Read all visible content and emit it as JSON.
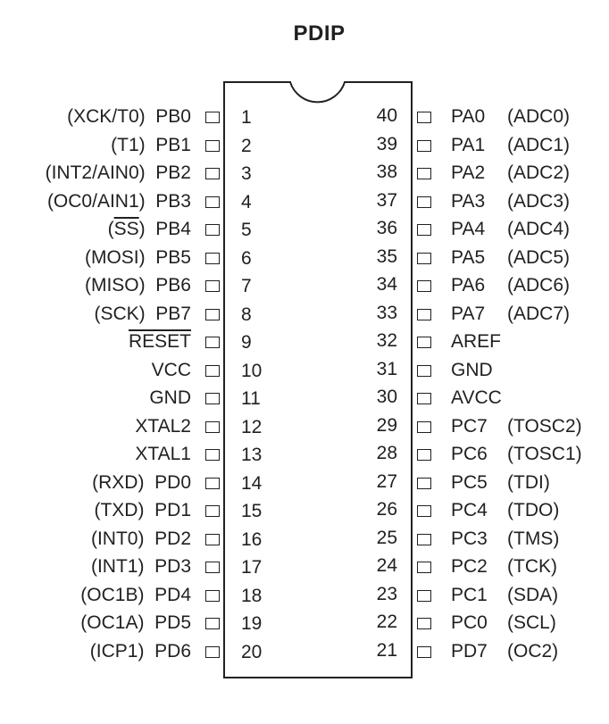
{
  "package": "PDIP",
  "left_pins": [
    {
      "num": "1",
      "pre": "(XCK/T0)  ",
      "name": "PB0",
      "overline": ""
    },
    {
      "num": "2",
      "pre": "(T1)  ",
      "name": "PB1",
      "overline": ""
    },
    {
      "num": "3",
      "pre": "(INT2/AIN0)  ",
      "name": "PB2",
      "overline": ""
    },
    {
      "num": "4",
      "pre": "(OC0/AIN1)  ",
      "name": "PB3",
      "overline": ""
    },
    {
      "num": "5",
      "pre": "(",
      "ovtext": "SS",
      "post": ")  ",
      "name": "PB4",
      "overline": "alt"
    },
    {
      "num": "6",
      "pre": "(MOSI)  ",
      "name": "PB5",
      "overline": ""
    },
    {
      "num": "7",
      "pre": "(MISO)  ",
      "name": "PB6",
      "overline": ""
    },
    {
      "num": "8",
      "pre": "(SCK)  ",
      "name": "PB7",
      "overline": ""
    },
    {
      "num": "9",
      "pre": "",
      "name": "RESET",
      "overline": "name"
    },
    {
      "num": "10",
      "pre": "",
      "name": "VCC",
      "overline": ""
    },
    {
      "num": "11",
      "pre": "",
      "name": "GND",
      "overline": ""
    },
    {
      "num": "12",
      "pre": "",
      "name": "XTAL2",
      "overline": ""
    },
    {
      "num": "13",
      "pre": "",
      "name": "XTAL1",
      "overline": ""
    },
    {
      "num": "14",
      "pre": "(RXD)  ",
      "name": "PD0",
      "overline": ""
    },
    {
      "num": "15",
      "pre": "(TXD)  ",
      "name": "PD1",
      "overline": ""
    },
    {
      "num": "16",
      "pre": "(INT0)  ",
      "name": "PD2",
      "overline": ""
    },
    {
      "num": "17",
      "pre": "(INT1)  ",
      "name": "PD3",
      "overline": ""
    },
    {
      "num": "18",
      "pre": "(OC1B)  ",
      "name": "PD4",
      "overline": ""
    },
    {
      "num": "19",
      "pre": "(OC1A)  ",
      "name": "PD5",
      "overline": ""
    },
    {
      "num": "20",
      "pre": "(ICP1)  ",
      "name": "PD6",
      "overline": ""
    }
  ],
  "right_pins": [
    {
      "num": "40",
      "name": "PA0",
      "alt": "(ADC0)"
    },
    {
      "num": "39",
      "name": "PA1",
      "alt": "(ADC1)"
    },
    {
      "num": "38",
      "name": "PA2",
      "alt": "(ADC2)"
    },
    {
      "num": "37",
      "name": "PA3",
      "alt": "(ADC3)"
    },
    {
      "num": "36",
      "name": "PA4",
      "alt": "(ADC4)"
    },
    {
      "num": "35",
      "name": "PA5",
      "alt": "(ADC5)"
    },
    {
      "num": "34",
      "name": "PA6",
      "alt": "(ADC6)"
    },
    {
      "num": "33",
      "name": "PA7",
      "alt": "(ADC7)"
    },
    {
      "num": "32",
      "name": "AREF",
      "alt": ""
    },
    {
      "num": "31",
      "name": "GND",
      "alt": ""
    },
    {
      "num": "30",
      "name": "AVCC",
      "alt": ""
    },
    {
      "num": "29",
      "name": "PC7",
      "alt": "(TOSC2)"
    },
    {
      "num": "28",
      "name": "PC6",
      "alt": "(TOSC1)"
    },
    {
      "num": "27",
      "name": "PC5",
      "alt": "(TDI)"
    },
    {
      "num": "26",
      "name": "PC4",
      "alt": "(TDO)"
    },
    {
      "num": "25",
      "name": "PC3",
      "alt": "(TMS)"
    },
    {
      "num": "24",
      "name": "PC2",
      "alt": "(TCK)"
    },
    {
      "num": "23",
      "name": "PC1",
      "alt": "(SDA)"
    },
    {
      "num": "22",
      "name": "PC0",
      "alt": "(SCL)"
    },
    {
      "num": "21",
      "name": "PD7",
      "alt": "(OC2)"
    }
  ]
}
